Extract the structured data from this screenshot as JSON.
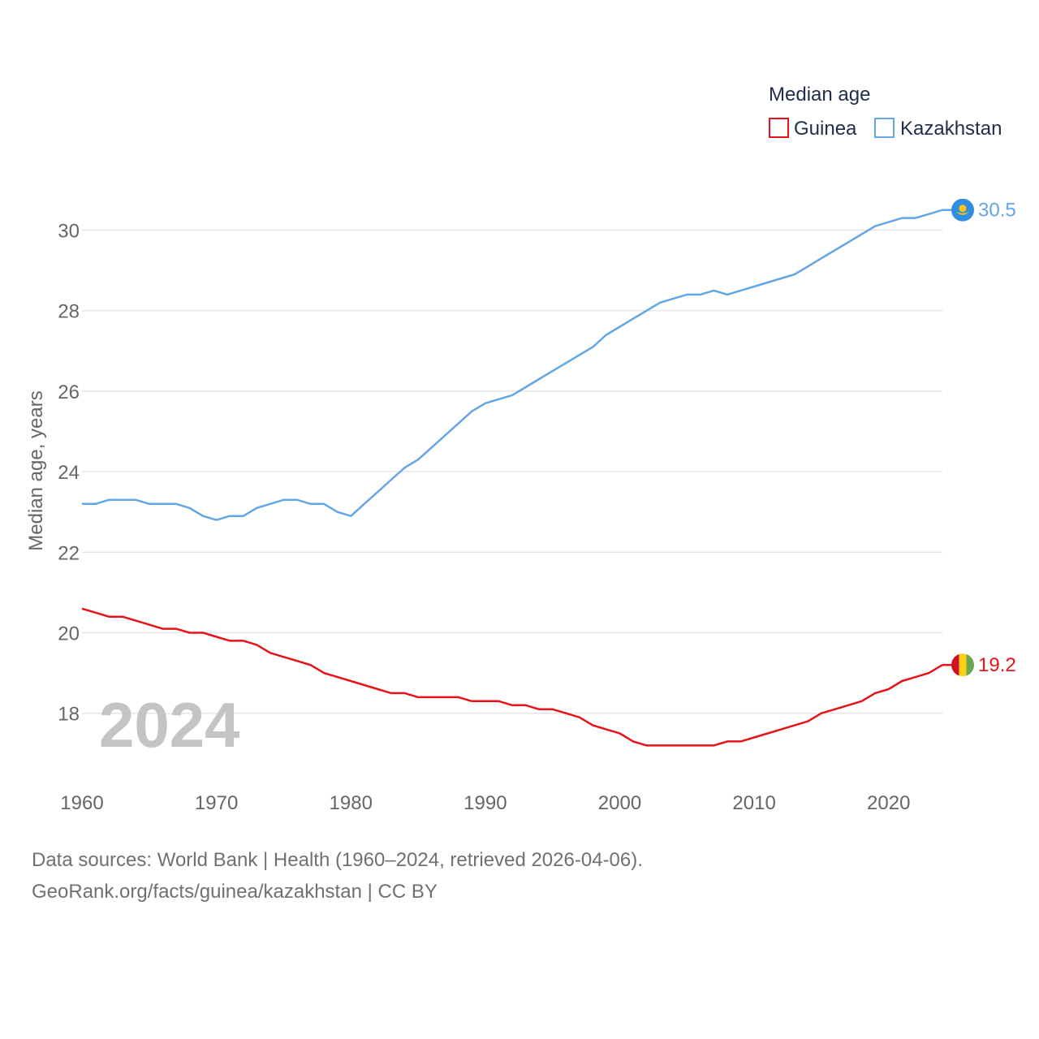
{
  "chart_data": {
    "type": "line",
    "legend_title": "Median age",
    "ylabel": "Median age, years",
    "xlabel": "",
    "xlim": [
      1960,
      2024
    ],
    "ylim": [
      16.2,
      31.2
    ],
    "x_ticks": [
      1960,
      1970,
      1980,
      1990,
      2000,
      2010,
      2020
    ],
    "y_ticks": [
      18,
      20,
      22,
      24,
      26,
      28,
      30
    ],
    "grid": true,
    "legend_position": "top-right",
    "year_label": "2024",
    "x": [
      1960,
      1961,
      1962,
      1963,
      1964,
      1965,
      1966,
      1967,
      1968,
      1969,
      1970,
      1971,
      1972,
      1973,
      1974,
      1975,
      1976,
      1977,
      1978,
      1979,
      1980,
      1981,
      1982,
      1983,
      1984,
      1985,
      1986,
      1987,
      1988,
      1989,
      1990,
      1991,
      1992,
      1993,
      1994,
      1995,
      1996,
      1997,
      1998,
      1999,
      2000,
      2001,
      2002,
      2003,
      2004,
      2005,
      2006,
      2007,
      2008,
      2009,
      2010,
      2011,
      2012,
      2013,
      2014,
      2015,
      2016,
      2017,
      2018,
      2019,
      2020,
      2021,
      2022,
      2023,
      2024
    ],
    "series": [
      {
        "name": "Guinea",
        "color": "#e8131a",
        "end_label": "19.2",
        "flag": "guinea-flag",
        "values": [
          20.6,
          20.5,
          20.4,
          20.4,
          20.3,
          20.2,
          20.1,
          20.1,
          20.0,
          20.0,
          19.9,
          19.8,
          19.8,
          19.7,
          19.5,
          19.4,
          19.3,
          19.2,
          19.0,
          18.9,
          18.8,
          18.7,
          18.6,
          18.5,
          18.5,
          18.4,
          18.4,
          18.4,
          18.4,
          18.3,
          18.3,
          18.3,
          18.2,
          18.2,
          18.1,
          18.1,
          18.0,
          17.9,
          17.7,
          17.6,
          17.5,
          17.3,
          17.2,
          17.2,
          17.2,
          17.2,
          17.2,
          17.2,
          17.3,
          17.3,
          17.4,
          17.5,
          17.6,
          17.7,
          17.8,
          18.0,
          18.1,
          18.2,
          18.3,
          18.5,
          18.6,
          18.8,
          18.9,
          19.0,
          19.2
        ]
      },
      {
        "name": "Kazakhstan",
        "color": "#64a6e5",
        "end_label": "30.5",
        "flag": "kazakhstan-flag",
        "values": [
          23.2,
          23.2,
          23.3,
          23.3,
          23.3,
          23.2,
          23.2,
          23.2,
          23.1,
          22.9,
          22.8,
          22.9,
          22.9,
          23.1,
          23.2,
          23.3,
          23.3,
          23.2,
          23.2,
          23.0,
          22.9,
          23.2,
          23.5,
          23.8,
          24.1,
          24.3,
          24.6,
          24.9,
          25.2,
          25.5,
          25.7,
          25.8,
          25.9,
          26.1,
          26.3,
          26.5,
          26.7,
          26.9,
          27.1,
          27.4,
          27.6,
          27.8,
          28.0,
          28.2,
          28.3,
          28.4,
          28.4,
          28.5,
          28.4,
          28.5,
          28.6,
          28.7,
          28.8,
          28.9,
          29.1,
          29.3,
          29.5,
          29.7,
          29.9,
          30.1,
          30.2,
          30.3,
          30.3,
          30.4,
          30.5
        ]
      }
    ]
  },
  "footer": {
    "line1": "Data sources: World Bank | Health (1960–2024, retrieved 2026-04-06).",
    "line2": "GeoRank.org/facts/guinea/kazakhstan | CC BY"
  }
}
